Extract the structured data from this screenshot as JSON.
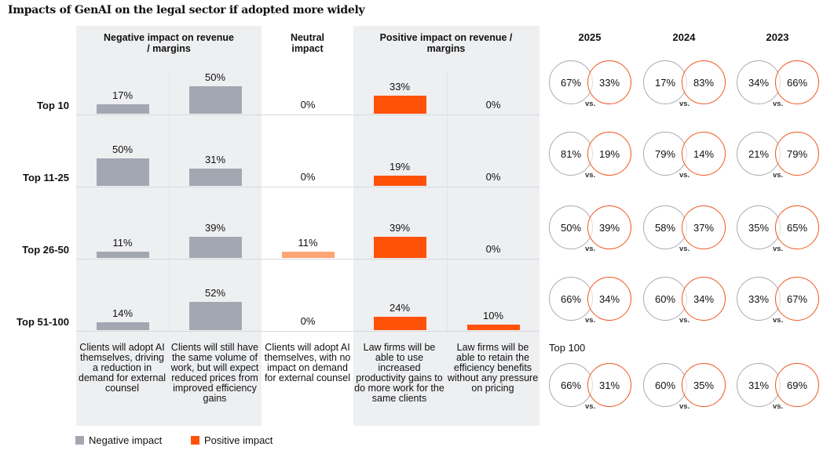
{
  "title": "Impacts of GenAI on the legal sector if adopted more widely",
  "colors": {
    "negative": "#a3a7b2",
    "positive": "#ff5208",
    "neutral": "#ffa474",
    "panel": "#eeeff1",
    "circle_grey": "#a9abb3",
    "circle_orange": "#f0551e"
  },
  "headers": {
    "negative": "Negative impact on revenue / margins",
    "neutral": "Neutral impact",
    "positive": "Positive impact on revenue / margins"
  },
  "chart_data": {
    "type": "bar",
    "title": "Impacts of GenAI on the legal sector if adopted more widely",
    "categories": [
      "Top 10",
      "Top 11-25",
      "Top 26-50",
      "Top 51-100"
    ],
    "series": [
      {
        "name": "Clients will adopt AI themselves, driving a reduction in demand for external counsel",
        "group": "negative",
        "values": [
          17,
          50,
          11,
          14
        ],
        "labels": [
          "17%",
          "50%",
          "11%",
          "14%"
        ]
      },
      {
        "name": "Clients will still have the same volume of work, but will expect reduced prices from improved efficiency gains",
        "group": "negative",
        "values": [
          50,
          31,
          39,
          52
        ],
        "labels": [
          "50%",
          "31%",
          "39%",
          "52%"
        ]
      },
      {
        "name": "Clients will adopt AI themselves, with no impact on demand for external counsel",
        "group": "neutral",
        "values": [
          0,
          0,
          11,
          0
        ],
        "labels": [
          "0%",
          "0%",
          "11%",
          "0%"
        ]
      },
      {
        "name": "Law firms will be able to use increased productivity gains to do more work for the same clients",
        "group": "positive",
        "values": [
          33,
          19,
          39,
          24
        ],
        "labels": [
          "33%",
          "19%",
          "39%",
          "24%"
        ]
      },
      {
        "name": "Law firms will be able to retain the efficiency benefits without any pressure on pricing",
        "group": "positive",
        "values": [
          0,
          0,
          0,
          10
        ],
        "labels": [
          "0%",
          "0%",
          "0%",
          "10%"
        ]
      }
    ],
    "legend": [
      "Negative impact",
      "Positive impact"
    ],
    "legend_position": "bottom-left",
    "ylim": [
      0,
      100
    ]
  },
  "comparison": {
    "years": [
      "2025",
      "2024",
      "2023"
    ],
    "vs_label": "vs.",
    "top100_label": "Top 100",
    "rows": [
      {
        "segment": "Top 10",
        "pairs": [
          [
            "67%",
            "33%"
          ],
          [
            "17%",
            "83%"
          ],
          [
            "34%",
            "66%"
          ]
        ]
      },
      {
        "segment": "Top 11-25",
        "pairs": [
          [
            "81%",
            "19%"
          ],
          [
            "79%",
            "14%"
          ],
          [
            "21%",
            "79%"
          ]
        ]
      },
      {
        "segment": "Top 26-50",
        "pairs": [
          [
            "50%",
            "39%"
          ],
          [
            "58%",
            "37%"
          ],
          [
            "35%",
            "65%"
          ]
        ]
      },
      {
        "segment": "Top 51-100",
        "pairs": [
          [
            "66%",
            "34%"
          ],
          [
            "60%",
            "34%"
          ],
          [
            "33%",
            "67%"
          ]
        ]
      },
      {
        "segment": "Top 100",
        "pairs": [
          [
            "66%",
            "31%"
          ],
          [
            "60%",
            "35%"
          ],
          [
            "31%",
            "69%"
          ]
        ]
      }
    ]
  }
}
